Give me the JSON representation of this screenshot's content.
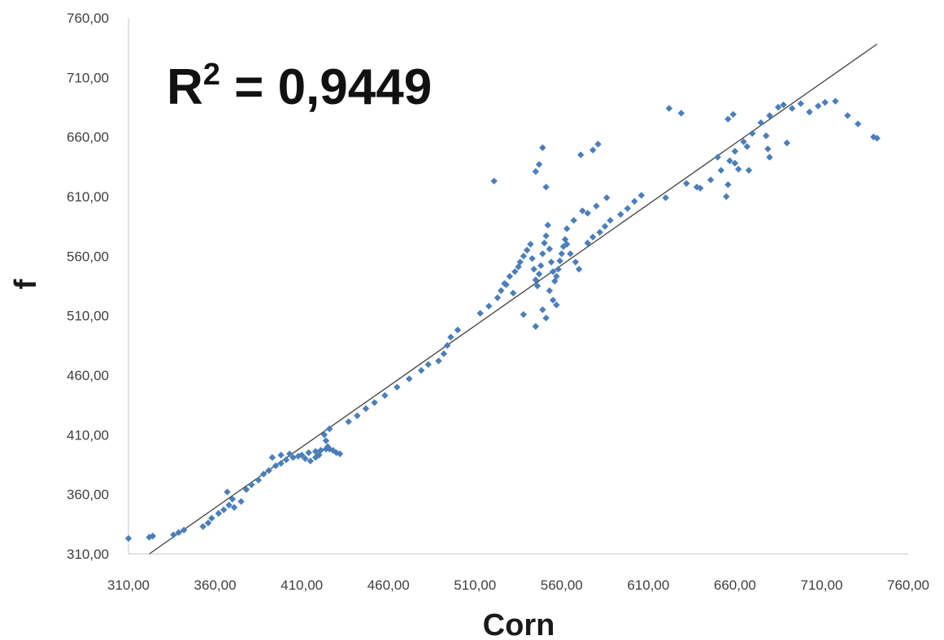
{
  "chart_data": {
    "type": "scatter",
    "xlabel": "Corn",
    "ylabel": "f",
    "xlim": [
      310,
      760
    ],
    "ylim": [
      310,
      760
    ],
    "x_ticks": [
      "310,00",
      "360,00",
      "410,00",
      "460,00",
      "510,00",
      "560,00",
      "610,00",
      "660,00",
      "710,00",
      "760,00"
    ],
    "y_ticks": [
      "310,00",
      "360,00",
      "410,00",
      "460,00",
      "510,00",
      "560,00",
      "610,00",
      "660,00",
      "710,00",
      "760,00"
    ],
    "annotation": {
      "base": "R",
      "superscript": "2",
      "rest": " = 0,9449"
    },
    "grid": false,
    "trendline": {
      "x": [
        322,
        742
      ],
      "y": [
        310,
        738
      ]
    },
    "marker_color": "#4a7ebb",
    "trendline_color": "#404040",
    "series": [
      {
        "x": [
          310,
          322,
          324,
          336,
          339,
          342,
          353,
          356,
          358,
          362,
          365,
          368,
          367,
          370,
          371,
          375,
          378,
          381,
          385,
          388,
          391,
          395,
          398,
          401,
          405,
          410,
          414,
          418,
          421,
          424,
          426,
          428,
          430,
          432,
          425,
          424,
          423,
          426,
          420,
          418,
          415,
          412,
          408,
          403,
          398,
          393,
          437,
          442,
          447,
          452,
          458,
          465,
          472,
          479,
          483,
          489,
          492,
          494,
          496,
          500,
          513,
          518,
          523,
          525,
          528,
          530,
          533,
          535,
          536,
          538,
          540,
          542,
          543,
          544,
          545,
          546,
          547,
          548,
          549,
          550,
          551,
          552,
          553,
          554,
          555,
          556,
          557,
          558,
          559,
          560,
          561,
          562,
          563,
          565,
          568,
          570,
          538,
          532,
          527,
          545,
          549,
          551,
          553,
          555,
          557,
          575,
          578,
          582,
          585,
          588,
          594,
          598,
          602,
          606,
          572,
          563,
          567,
          575,
          580,
          586,
          521,
          545,
          547,
          549,
          551,
          571,
          578,
          581,
          622,
          629,
          640,
          646,
          652,
          657,
          660,
          665,
          670,
          675,
          680,
          685,
          688,
          693,
          698,
          703,
          708,
          712,
          718,
          725,
          731,
          740,
          742,
          620,
          655,
          656,
          668,
          680,
          690,
          632,
          638,
          650,
          667,
          678,
          679,
          660,
          662,
          656,
          659
        ],
        "y": [
          323,
          324,
          325,
          326,
          328,
          330,
          333,
          336,
          340,
          344,
          347,
          351,
          362,
          356,
          349,
          354,
          364,
          368,
          372,
          377,
          380,
          384,
          386,
          389,
          391,
          393,
          395,
          396,
          397,
          398,
          398,
          397,
          395,
          394,
          400,
          405,
          410,
          415,
          393,
          391,
          388,
          390,
          392,
          394,
          393,
          391,
          421,
          426,
          432,
          437,
          443,
          450,
          457,
          464,
          469,
          472,
          478,
          485,
          492,
          498,
          512,
          518,
          525,
          531,
          536,
          543,
          547,
          551,
          555,
          560,
          565,
          570,
          558,
          549,
          540,
          535,
          545,
          552,
          562,
          571,
          577,
          586,
          566,
          555,
          547,
          539,
          543,
          549,
          556,
          562,
          568,
          574,
          570,
          562,
          555,
          549,
          511,
          529,
          537,
          501,
          515,
          508,
          531,
          523,
          519,
          571,
          576,
          580,
          585,
          590,
          595,
          600,
          606,
          611,
          598,
          583,
          590,
          596,
          602,
          609,
          623,
          631,
          637,
          651,
          618,
          645,
          649,
          654,
          684,
          680,
          617,
          624,
          632,
          640,
          648,
          656,
          663,
          672,
          678,
          685,
          687,
          684,
          688,
          681,
          686,
          689,
          690,
          678,
          671,
          660,
          659,
          609,
          610,
          620,
          632,
          643,
          655,
          621,
          618,
          643,
          652,
          661,
          650,
          638,
          633,
          675,
          679
        ]
      }
    ]
  }
}
